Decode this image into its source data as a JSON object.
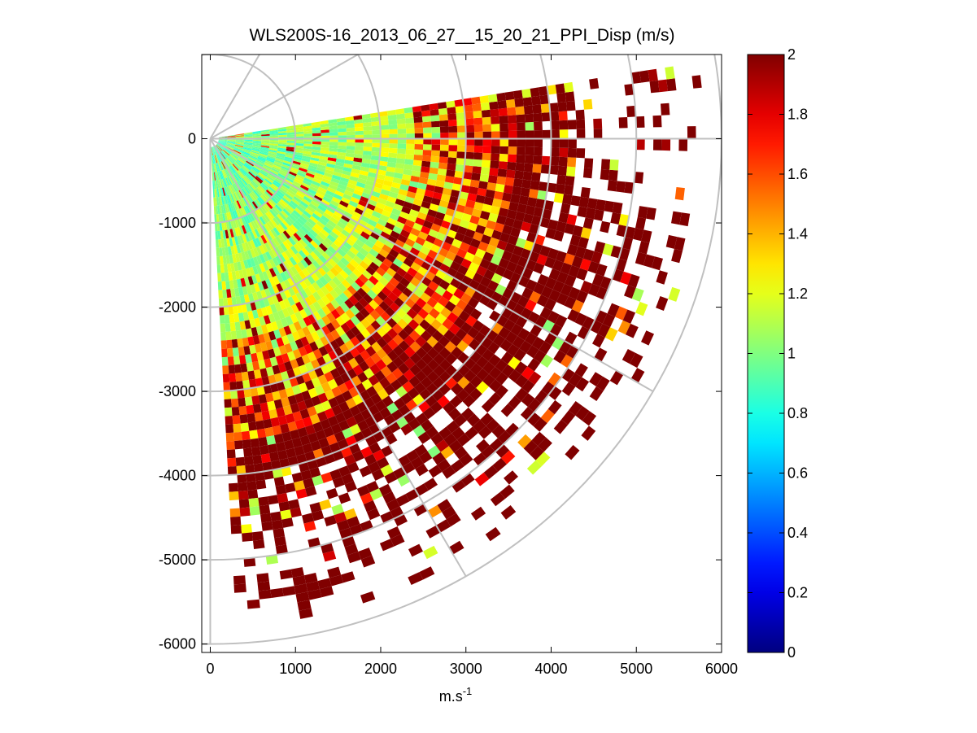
{
  "chart_data": {
    "type": "heatmap",
    "subtype": "polar-ppi-scan",
    "title": "WLS200S-16_2013_06_27__15_20_21_PPI_Disp (m/s)",
    "xlabel": "m.s",
    "xlabel_superscript": "-1",
    "ylabel": "",
    "xlim": [
      -100,
      6000
    ],
    "ylim": [
      -6100,
      1000
    ],
    "xticks": [
      0,
      1000,
      2000,
      3000,
      4000,
      5000,
      6000
    ],
    "yticks": [
      0,
      -1000,
      -2000,
      -3000,
      -4000,
      -5000,
      -6000
    ],
    "xtick_labels": [
      "0",
      "1000",
      "2000",
      "3000",
      "4000",
      "5000",
      "6000"
    ],
    "ytick_labels": [
      "0",
      "-1000",
      "-2000",
      "-3000",
      "-4000",
      "-5000",
      "-6000"
    ],
    "colorbar": {
      "colormap": "jet",
      "range": [
        0,
        2
      ],
      "ticks": [
        0,
        0.2,
        0.4,
        0.6,
        0.8,
        1,
        1.2,
        1.4,
        1.6,
        1.8,
        2
      ],
      "tick_labels": [
        "0",
        "0.2",
        "0.4",
        "0.6",
        "0.8",
        "1",
        "1.2",
        "1.4",
        "1.6",
        "1.8",
        "2"
      ]
    },
    "scan": {
      "azimuth_range_deg": [
        -87,
        8
      ],
      "range_limit_m": [
        100,
        5800
      ],
      "range_gate_m": 100,
      "azimuth_step_deg": 1.5,
      "value_trend": "≈0.8–1.0 m/s near the lidar, rising to ≥2 m/s (saturated) beyond ~3500–4000 m, with data becoming sparse at far range"
    },
    "polar_grid": {
      "range_rings_m": [
        1000,
        2000,
        3000,
        4000,
        5000,
        6000
      ],
      "spokes_deg": [
        0,
        -30,
        -60,
        -90,
        30,
        60
      ],
      "color": "#c0c0c0"
    }
  }
}
